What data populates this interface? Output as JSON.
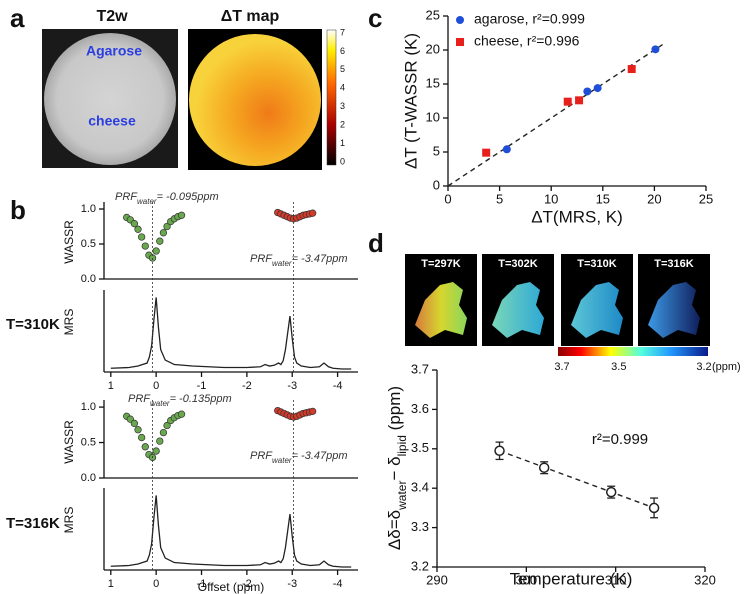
{
  "panel_labels": [
    "a",
    "b",
    "c",
    "d"
  ],
  "panel_a": {
    "images": [
      {
        "title": "T2w",
        "labels": [
          "Agarose",
          "cheese"
        ]
      },
      {
        "title": "ΔT map"
      }
    ],
    "colorbar": {
      "lim": [
        0,
        7
      ],
      "ticks": [
        0,
        1,
        2,
        3,
        4,
        5,
        6,
        7
      ]
    }
  },
  "panel_b": {
    "rows": [
      "T=310K",
      "T=316K"
    ],
    "prf_labels": [
      [
        {
          "sym": "PRF",
          "sub": "water",
          "text": "= -0.095ppm"
        },
        {
          "sym": "PRF",
          "sub": "water",
          "text": "= -3.47ppm"
        }
      ],
      [
        {
          "sym": "PRF",
          "sub": "water",
          "text": "= -0.135ppm"
        },
        {
          "sym": "PRF",
          "sub": "water",
          "text": "= -3.47ppm"
        }
      ]
    ]
  },
  "panel_d": {
    "maps": [
      "T=297K",
      "T=302K",
      "T=310K",
      "T=316K"
    ],
    "colorbar": {
      "lim": [
        3.7,
        3.2
      ],
      "ticks": [
        3.7,
        3.5,
        3.2
      ],
      "unit": "(ppm)"
    }
  },
  "chart_data": [
    {
      "type": "scatter",
      "xlabel": "ΔT(MRS, K)",
      "ylabel": "ΔT (T-WASSR (K)",
      "xlim": [
        0,
        25
      ],
      "xticks": [
        0,
        5,
        10,
        15,
        20,
        25
      ],
      "ylim": [
        0,
        25
      ],
      "yticks": [
        0,
        5,
        10,
        15,
        20,
        25
      ],
      "legend": "upper left",
      "series": [
        {
          "name": "agarose, r²=0.999",
          "color": "#1f4fd8",
          "marker": "circle",
          "x": [
            5.7,
            13.5,
            14.5,
            20.1
          ],
          "values": [
            5.4,
            13.9,
            14.4,
            20.1
          ]
        },
        {
          "name": "cheese, r²=0.996",
          "color": "#e8201c",
          "marker": "square",
          "x": [
            3.7,
            11.6,
            12.7,
            17.8
          ],
          "values": [
            4.9,
            12.4,
            12.6,
            17.2
          ]
        }
      ],
      "fit": {
        "x": [
          0,
          21
        ],
        "y": [
          0,
          21
        ]
      }
    },
    {
      "type": "scatter",
      "ylabel": "WASSR",
      "xlim": [
        1.15,
        -4.45
      ],
      "ylim": [
        0,
        1.1
      ],
      "yticks": [
        {
          "value": 0,
          "label": "0.0"
        },
        0.5,
        {
          "value": 1,
          "label": "1.0"
        }
      ],
      "series": [
        {
          "color": "#6aa84f",
          "marker": "circle",
          "x": [
            0.65,
            0.57,
            0.48,
            0.4,
            0.32,
            0.24,
            0.16,
            0.08,
            0,
            -0.08,
            -0.16,
            -0.24,
            -0.32,
            -0.4,
            -0.48,
            -0.56
          ],
          "values": [
            0.88,
            0.845,
            0.79,
            0.71,
            0.6,
            0.47,
            0.34,
            0.3,
            0.4,
            0.54,
            0.66,
            0.75,
            0.82,
            0.86,
            0.89,
            0.91
          ]
        },
        {
          "color": "#d23a2a",
          "marker": "circle",
          "x": [
            -2.68,
            -2.75,
            -2.82,
            -2.89,
            -2.96,
            -3.03,
            -3.1,
            -3.17,
            -3.24,
            -3.31,
            -3.38,
            -3.45
          ],
          "values": [
            0.95,
            0.93,
            0.91,
            0.89,
            0.87,
            0.86,
            0.87,
            0.89,
            0.91,
            0.92,
            0.93,
            0.94
          ]
        }
      ]
    },
    {
      "type": "line",
      "ylabel": "MRS",
      "xlim": [
        1.15,
        -4.45
      ],
      "ylim": [
        0,
        1.1
      ],
      "xticks": [
        1,
        0,
        -1,
        -2,
        -3,
        -4
      ],
      "series": [
        {
          "color": "#222222",
          "x": [
            1.0,
            0.6,
            0.4,
            0.3,
            0.2,
            0.15,
            0.1,
            0.05,
            0,
            -0.05,
            -0.1,
            -0.2,
            -0.4,
            -0.8,
            -1.5,
            -2.0,
            -2.3,
            -2.4,
            -2.5,
            -2.6,
            -2.7,
            -2.75,
            -2.8,
            -2.85,
            -2.95,
            -3.0,
            -3.05,
            -3.1,
            -3.2,
            -3.4,
            -3.6,
            -3.7,
            -3.8,
            -3.9,
            -4.1,
            -4.3
          ],
          "values": [
            0.05,
            0.06,
            0.08,
            0.1,
            0.12,
            0.2,
            0.35,
            0.7,
            1.0,
            0.6,
            0.3,
            0.16,
            0.1,
            0.08,
            0.06,
            0.06,
            0.07,
            0.1,
            0.08,
            0.09,
            0.12,
            0.1,
            0.15,
            0.3,
            0.75,
            0.45,
            0.2,
            0.12,
            0.08,
            0.06,
            0.07,
            0.12,
            0.07,
            0.05,
            0.04,
            0.04
          ]
        }
      ]
    },
    {
      "type": "scatter",
      "ylabel": "WASSR",
      "xlim": [
        1.15,
        -4.45
      ],
      "ylim": [
        0,
        1.1
      ],
      "yticks": [
        {
          "value": 0,
          "label": "0.0"
        },
        0.5,
        {
          "value": 1,
          "label": "1.0"
        }
      ],
      "series": [
        {
          "color": "#6aa84f",
          "marker": "circle",
          "x": [
            0.65,
            0.57,
            0.48,
            0.4,
            0.32,
            0.24,
            0.16,
            0.08,
            0,
            -0.08,
            -0.16,
            -0.24,
            -0.32,
            -0.4,
            -0.48,
            -0.56
          ],
          "values": [
            0.87,
            0.83,
            0.77,
            0.68,
            0.57,
            0.44,
            0.33,
            0.29,
            0.38,
            0.52,
            0.64,
            0.74,
            0.81,
            0.85,
            0.88,
            0.9
          ]
        },
        {
          "color": "#d23a2a",
          "marker": "circle",
          "x": [
            -2.68,
            -2.75,
            -2.82,
            -2.89,
            -2.96,
            -3.03,
            -3.1,
            -3.17,
            -3.24,
            -3.31,
            -3.38,
            -3.45
          ],
          "values": [
            0.95,
            0.93,
            0.91,
            0.89,
            0.87,
            0.86,
            0.87,
            0.89,
            0.91,
            0.92,
            0.93,
            0.94
          ]
        }
      ]
    },
    {
      "type": "line",
      "ylabel": "MRS",
      "xlabel": "Offset (ppm)",
      "xlim": [
        1.15,
        -4.45
      ],
      "ylim": [
        0,
        1.1
      ],
      "xticks": [
        1,
        0,
        -1,
        -2,
        -3,
        -4
      ],
      "series": [
        {
          "color": "#222222",
          "x": [
            1.0,
            0.6,
            0.4,
            0.3,
            0.2,
            0.15,
            0.1,
            0.05,
            0,
            -0.05,
            -0.1,
            -0.2,
            -0.4,
            -0.8,
            -1.5,
            -2.0,
            -2.3,
            -2.4,
            -2.5,
            -2.6,
            -2.7,
            -2.75,
            -2.8,
            -2.85,
            -2.95,
            -3.0,
            -3.05,
            -3.1,
            -3.2,
            -3.4,
            -3.6,
            -3.7,
            -3.8,
            -3.9,
            -4.1,
            -4.3
          ],
          "values": [
            0.05,
            0.06,
            0.08,
            0.1,
            0.12,
            0.2,
            0.35,
            0.7,
            1.0,
            0.6,
            0.3,
            0.16,
            0.1,
            0.08,
            0.06,
            0.06,
            0.07,
            0.1,
            0.08,
            0.09,
            0.12,
            0.1,
            0.15,
            0.3,
            0.75,
            0.45,
            0.2,
            0.12,
            0.08,
            0.06,
            0.07,
            0.12,
            0.07,
            0.05,
            0.04,
            0.04
          ]
        }
      ]
    },
    {
      "type": "scatter",
      "xlabel": "Temperature (K)",
      "ylabel": [
        "Δδ=δ",
        "water",
        "− δ",
        "lipid",
        " (ppm)"
      ],
      "xlim": [
        290,
        320
      ],
      "xticks": [
        290,
        300,
        310,
        320
      ],
      "ylim": [
        3.2,
        3.7
      ],
      "yticks": [
        3.2,
        3.3,
        3.4,
        3.5,
        3.6,
        3.7
      ],
      "annotation": "r²=0.999",
      "series": [
        {
          "color": "#222222",
          "marker": "open-circle",
          "x": [
            297,
            302,
            309.5,
            314.3
          ],
          "values": [
            3.495,
            3.452,
            3.39,
            3.35
          ],
          "errors": [
            0.022,
            0.015,
            0.015,
            0.025
          ]
        }
      ],
      "fit": {
        "x": [
          297,
          314.3
        ],
        "y": [
          3.495,
          3.35
        ]
      }
    }
  ]
}
